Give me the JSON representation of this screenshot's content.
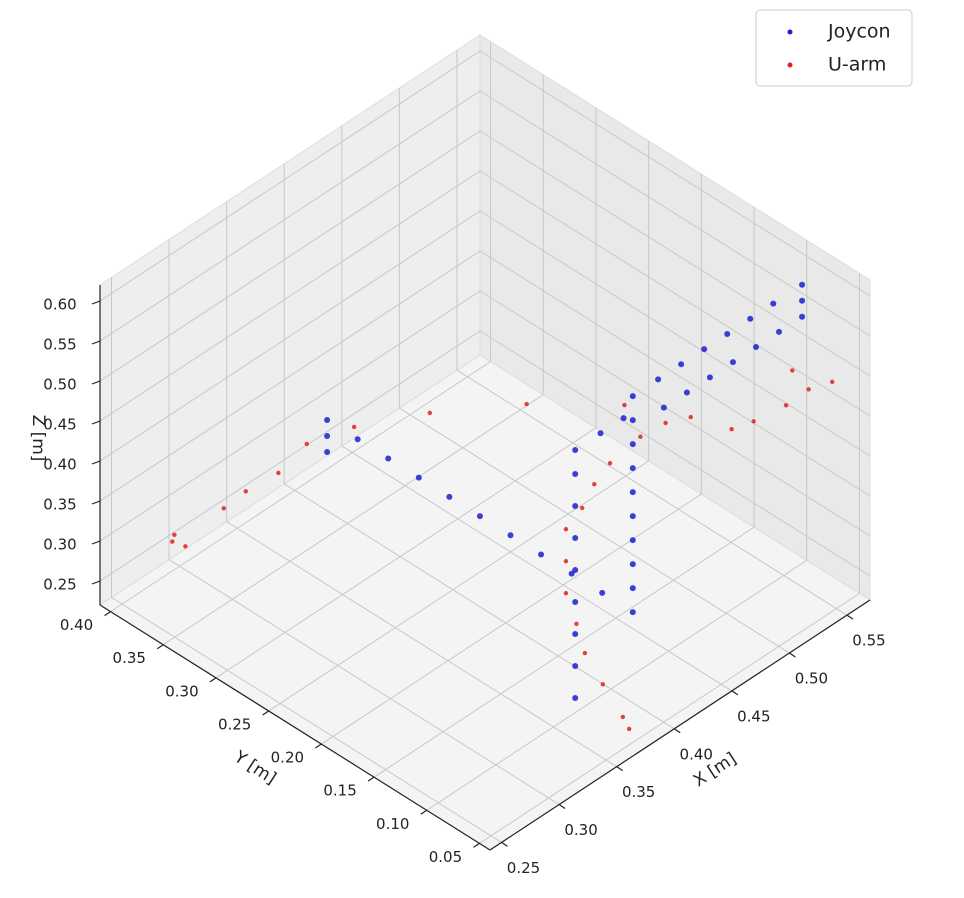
{
  "chart_data": {
    "type": "scatter3d",
    "xlabel": "X [m]",
    "ylabel": "Y [m]",
    "zlabel": "Z [m]",
    "xlim": [
      0.24,
      0.57
    ],
    "ylim": [
      0.04,
      0.41
    ],
    "zlim": [
      0.22,
      0.62
    ],
    "xticks": [
      0.25,
      {
        "value": 0.3,
        "label": "0.30"
      },
      0.35,
      {
        "value": 0.4,
        "label": "0.40"
      },
      0.45,
      {
        "value": 0.5,
        "label": "0.50"
      },
      0.55
    ],
    "yticks": [
      0.05,
      {
        "value": 0.1,
        "label": "0.10"
      },
      0.15,
      {
        "value": 0.2,
        "label": "0.20"
      },
      0.25,
      {
        "value": 0.3,
        "label": "0.30"
      },
      0.35,
      {
        "value": 0.4,
        "label": "0.40"
      }
    ],
    "zticks": [
      0.25,
      {
        "value": 0.3,
        "label": "0.30"
      },
      0.35,
      {
        "value": 0.4,
        "label": "0.40"
      },
      0.45,
      {
        "value": 0.5,
        "label": "0.50"
      },
      0.55,
      {
        "value": 0.6,
        "label": "0.60"
      }
    ],
    "grid": true,
    "legend": "upper right",
    "series": [
      {
        "name": "Joycon",
        "color": "#1a1fcc",
        "x": [
          0.418,
          0.418,
          0.418,
          0.418,
          0.418,
          0.418,
          0.418,
          0.418,
          0.418,
          0.418,
          0.418,
          0.418,
          0.418,
          0.418,
          0.418,
          0.418,
          0.418,
          0.418,
          0.418,
          0.418,
          0.418,
          0.418,
          0.44,
          0.46,
          0.48,
          0.5,
          0.52,
          0.54,
          0.565,
          0.565,
          0.565,
          0.545,
          0.525,
          0.505,
          0.485,
          0.465,
          0.445,
          0.368,
          0.368,
          0.368,
          0.368,
          0.368,
          0.368,
          0.368,
          0.368,
          0.368,
          0.39,
          0.41
        ],
        "y": [
          0.389,
          0.389,
          0.389,
          0.36,
          0.331,
          0.302,
          0.273,
          0.244,
          0.215,
          0.186,
          0.157,
          0.128,
          0.099,
          0.099,
          0.099,
          0.099,
          0.099,
          0.099,
          0.099,
          0.099,
          0.099,
          0.099,
          0.099,
          0.099,
          0.099,
          0.099,
          0.099,
          0.099,
          0.099,
          0.099,
          0.099,
          0.099,
          0.099,
          0.099,
          0.099,
          0.099,
          0.099,
          0.099,
          0.099,
          0.099,
          0.099,
          0.099,
          0.099,
          0.099,
          0.099,
          0.099,
          0.099,
          0.099
        ],
        "z": [
          0.26,
          0.28,
          0.3,
          0.3,
          0.3,
          0.3,
          0.3,
          0.3,
          0.3,
          0.3,
          0.3,
          0.3,
          0.3,
          0.33,
          0.36,
          0.39,
          0.42,
          0.45,
          0.48,
          0.51,
          0.54,
          0.57,
          0.57,
          0.57,
          0.57,
          0.57,
          0.57,
          0.57,
          0.57,
          0.55,
          0.53,
          0.53,
          0.53,
          0.53,
          0.53,
          0.53,
          0.53,
          0.24,
          0.28,
          0.32,
          0.36,
          0.4,
          0.44,
          0.48,
          0.52,
          0.55,
          0.55,
          0.55
        ]
      },
      {
        "name": "U-arm",
        "color": "#e02020",
        "x": [
          0.3,
          0.3,
          0.305,
          0.32,
          0.33,
          0.34,
          0.35,
          0.36,
          0.38,
          0.4,
          0.43,
          0.45,
          0.43,
          0.41,
          0.39,
          0.38,
          0.375,
          0.37,
          0.37,
          0.37,
          0.37,
          0.37,
          0.37,
          0.37,
          0.37,
          0.47,
          0.49,
          0.52,
          0.535,
          0.55,
          0.53
        ],
        "y": [
          0.407,
          0.405,
          0.4,
          0.38,
          0.37,
          0.35,
          0.334,
          0.3,
          0.25,
          0.18,
          0.12,
          0.079,
          0.081,
          0.083,
          0.09,
          0.094,
          0.1,
          0.11,
          0.11,
          0.11,
          0.1,
          0.092,
          0.075,
          0.056,
          0.05,
          0.062,
          0.063,
          0.065,
          0.06,
          0.054,
          0.07
        ],
        "z": [
          0.245,
          0.255,
          0.24,
          0.29,
          0.31,
          0.34,
          0.38,
          0.42,
          0.46,
          0.51,
          0.53,
          0.53,
          0.54,
          0.54,
          0.52,
          0.5,
          0.47,
          0.44,
          0.4,
          0.36,
          0.33,
          0.3,
          0.275,
          0.25,
          0.24,
          0.51,
          0.5,
          0.49,
          0.5,
          0.5,
          0.52
        ]
      }
    ]
  }
}
